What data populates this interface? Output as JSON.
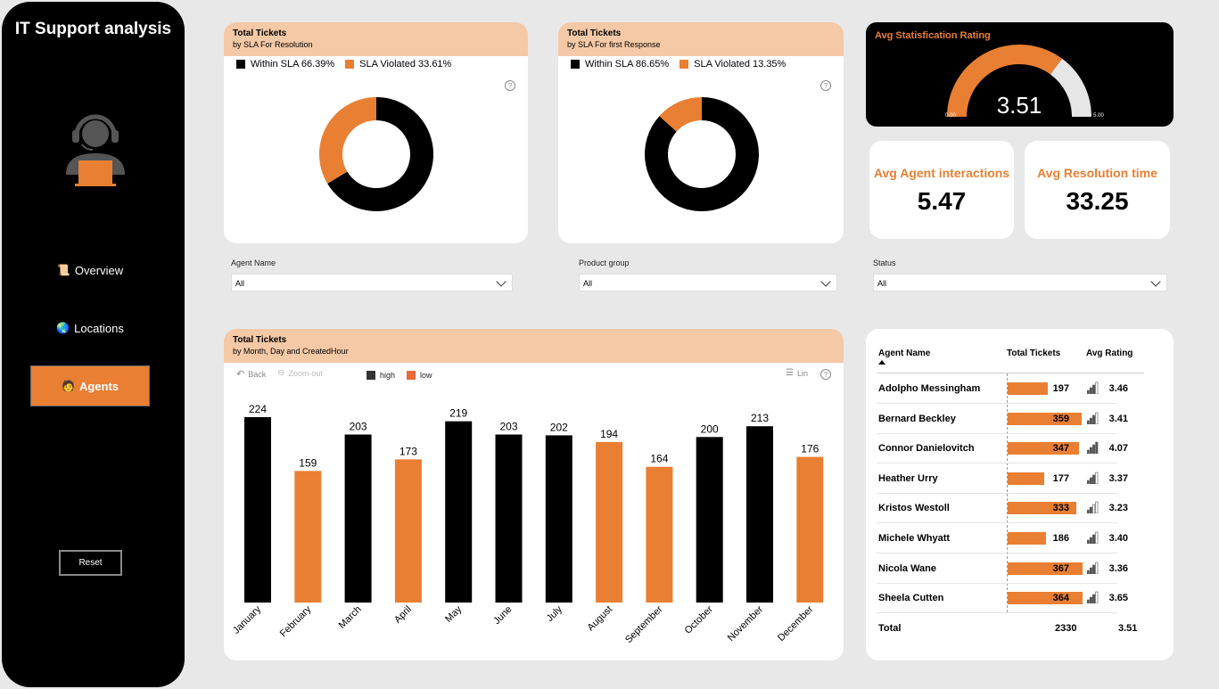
{
  "app_title": "IT Support analysis",
  "nav": [
    {
      "label": "Overview",
      "icon": "scroll-icon",
      "glyph": "📜"
    },
    {
      "label": "Locations",
      "icon": "globe-icon",
      "glyph": "🌏"
    },
    {
      "label": "Agents",
      "icon": "person-at-desk-icon",
      "glyph": "🧑"
    }
  ],
  "reset_label": "Reset",
  "donut1": {
    "title": "Total Tickets",
    "subtitle": "by SLA For Resolution",
    "legend": [
      "Within SLA 66.39%",
      "SLA Violated 33.61%"
    ],
    "within": 66.39,
    "violated": 33.61
  },
  "donut2": {
    "title": "Total Tickets",
    "subtitle": "by SLA For first Response",
    "legend": [
      "Within SLA 86.65%",
      "SLA Violated 13.35%"
    ],
    "within": 86.65,
    "violated": 13.35
  },
  "gauge": {
    "title": "Avg Statisfication Rating",
    "value": 3.51,
    "value_label": "3.51",
    "min": 0,
    "max": 5,
    "min_label": "0.00",
    "max_label": "5.00"
  },
  "kpis": [
    {
      "label": "Avg Agent interactions",
      "value": "5.47"
    },
    {
      "label": "Avg Resolution time",
      "value": "33.25"
    }
  ],
  "slicers": [
    {
      "label": "Agent Name",
      "value": "All"
    },
    {
      "label": "Product group",
      "value": "All"
    },
    {
      "label": "Status",
      "value": "All"
    }
  ],
  "bar_chart_header": {
    "title": "Total Tickets",
    "subtitle": "by Month, Day and CreatedHour"
  },
  "toolbar": {
    "back": "Back",
    "zoom_out": "Zoom-out",
    "lin": "Lin"
  },
  "chart_data": {
    "type": "bar",
    "categories": [
      "January",
      "February",
      "March",
      "April",
      "May",
      "June",
      "July",
      "August",
      "September",
      "October",
      "November",
      "December"
    ],
    "values": [
      224,
      159,
      203,
      173,
      219,
      203,
      202,
      194,
      164,
      200,
      213,
      176
    ],
    "groups": [
      "high",
      "low",
      "high",
      "low",
      "high",
      "high",
      "high",
      "low",
      "low",
      "high",
      "high",
      "low"
    ],
    "legend": [
      "high",
      "low"
    ],
    "colors": {
      "high": "#000000",
      "low": "#e97f32"
    },
    "ylim": [
      0,
      224
    ]
  },
  "table": {
    "headers": [
      "Agent Name",
      "Total Tickets",
      "Avg Rating"
    ],
    "rows": [
      {
        "name": "Adolpho Messingham",
        "tickets": 197,
        "tickets_label": "197",
        "rating": "3.46",
        "signal": 3
      },
      {
        "name": "Bernard Beckley",
        "tickets": 359,
        "tickets_label": "359",
        "rating": "3.41",
        "signal": 3
      },
      {
        "name": "Connor Danielovitch",
        "tickets": 347,
        "tickets_label": "347",
        "rating": "4.07",
        "signal": 4
      },
      {
        "name": "Heather Urry",
        "tickets": 177,
        "tickets_label": "177",
        "rating": "3.37",
        "signal": 3
      },
      {
        "name": "Kristos Westoll",
        "tickets": 333,
        "tickets_label": "333",
        "rating": "3.23",
        "signal": 2
      },
      {
        "name": "Michele Whyatt",
        "tickets": 186,
        "tickets_label": "186",
        "rating": "3.40",
        "signal": 3
      },
      {
        "name": "Nicola Wane",
        "tickets": 367,
        "tickets_label": "367",
        "rating": "3.36",
        "signal": 3
      },
      {
        "name": "Sheela Cutten",
        "tickets": 364,
        "tickets_label": "364",
        "rating": "3.65",
        "signal": 3
      }
    ],
    "total": {
      "label": "Total",
      "tickets": "2330",
      "rating": "3.51"
    }
  }
}
